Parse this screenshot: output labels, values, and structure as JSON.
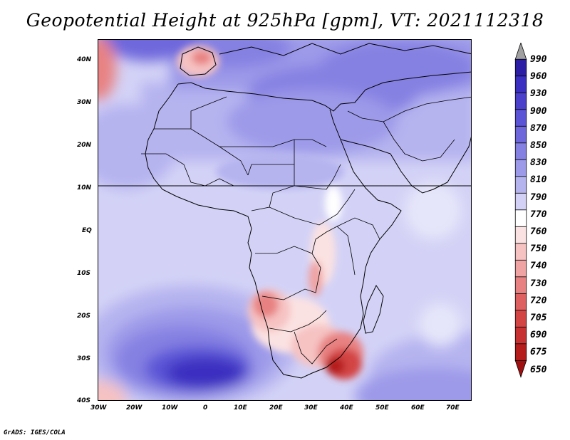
{
  "title": "Geopotential Height at 925hPa [gpm], VT: 2021112318",
  "credit": "GrADS: IGES/COLA",
  "lat_labels": [
    "40N",
    "30N",
    "20N",
    "10N",
    "EQ",
    "10S",
    "20S",
    "30S",
    "40S"
  ],
  "lon_labels": [
    "30W",
    "20W",
    "10W",
    "0",
    "10E",
    "20E",
    "30E",
    "40E",
    "50E",
    "60E",
    "70E"
  ],
  "colorbar": {
    "levels": [
      "990",
      "960",
      "930",
      "900",
      "870",
      "850",
      "830",
      "810",
      "790",
      "770",
      "760",
      "750",
      "740",
      "730",
      "720",
      "705",
      "690",
      "675",
      "650"
    ],
    "colors": [
      "#a0a0a0",
      "#2c1fa6",
      "#3a2fc0",
      "#4a40cc",
      "#5c54d6",
      "#6e67dc",
      "#8581e2",
      "#9d9ae9",
      "#b6b4ef",
      "#d3d2f6",
      "#ffffff",
      "#fbe2e2",
      "#f6c2c2",
      "#f0a3a3",
      "#e88282",
      "#de6060",
      "#d34545",
      "#c83131",
      "#b51c1c",
      "#a01010"
    ]
  },
  "chart_data": {
    "type": "heatmap",
    "title": "Geopotential Height at 925hPa [gpm], VT: 2021112318",
    "variable": "Geopotential Height",
    "level": "925hPa",
    "units": "gpm",
    "valid_time": "2021112318",
    "lon_range": [
      -30,
      76
    ],
    "lat_range": [
      -40,
      45
    ],
    "features": [
      {
        "name": "low over South Africa / Mozambique",
        "lon": 36,
        "lat": -31,
        "value_min": 650
      },
      {
        "name": "low over Namibia / Botswana",
        "lon": 22,
        "lat": -20,
        "value_min": 740
      },
      {
        "name": "low over Iberia",
        "lon": -2,
        "lat": 40,
        "value_min": 740
      },
      {
        "name": "high over South Atlantic",
        "lon": -8,
        "lat": -31,
        "value_max": 930
      },
      {
        "name": "high over Middle East",
        "lon": 42,
        "lat": 27,
        "value_max": 870
      },
      {
        "name": "high over central Mediterranean",
        "lon": 25,
        "lat": 40,
        "value_max": 870
      }
    ]
  }
}
